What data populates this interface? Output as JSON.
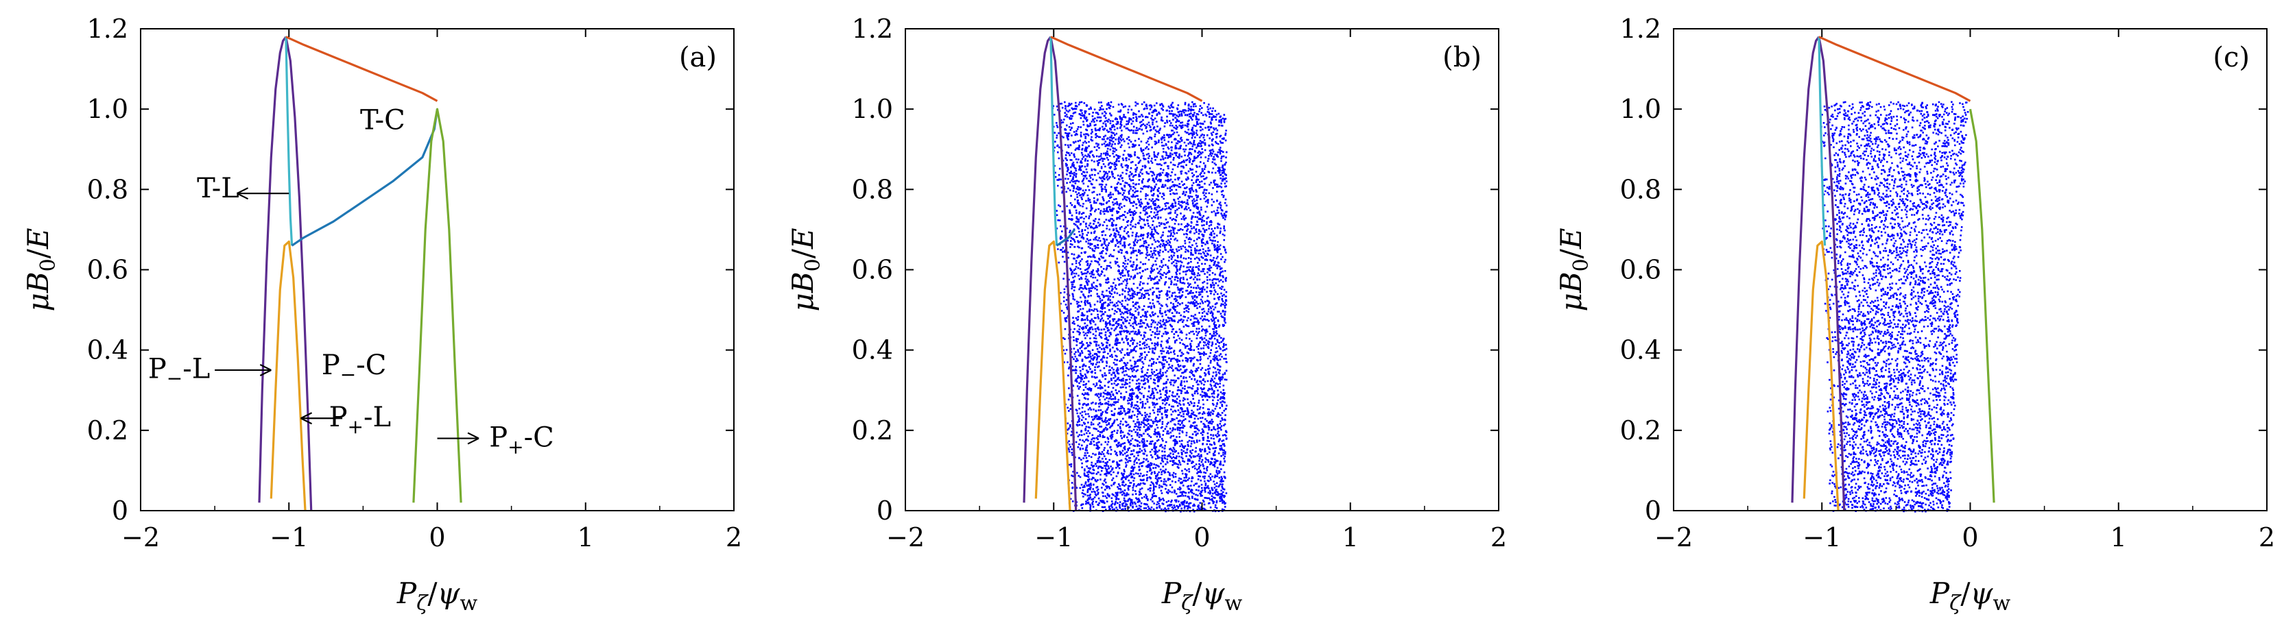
{
  "figure": {
    "panels": [
      "(a)",
      "(b)",
      "(c)"
    ],
    "xlabel": "P_ζ/ψ_w",
    "ylabel": "μB_0/E"
  },
  "colors": {
    "purple": "#5b2c8f",
    "orange": "#e6a020",
    "red_orange": "#d9541e",
    "teal_blue": "#1f77b4",
    "cyan": "#3fb6c8",
    "green": "#77ac30",
    "scatter_blue": "#0000ff"
  },
  "chart_data": [
    {
      "type": "line",
      "panel_label": "(a)",
      "xlim": [
        -2,
        2
      ],
      "ylim": [
        0,
        1.2
      ],
      "xticks": [
        -2,
        -1,
        0,
        1,
        2
      ],
      "yticks": [
        0,
        0.2,
        0.4,
        0.6,
        0.8,
        1.0,
        1.2
      ],
      "ytick_labels": [
        "0",
        "0.2",
        "0.4",
        "0.6",
        "0.8",
        "1.0",
        "1.2"
      ],
      "xtick_labels": [
        "−2",
        "−1",
        "0",
        "1",
        "2"
      ],
      "grid": false,
      "series": [
        {
          "key": "purple_outer",
          "color": "purple",
          "x": [
            -1.2,
            -1.18,
            -1.15,
            -1.12,
            -1.09,
            -1.06,
            -1.04,
            -1.02
          ],
          "y": [
            0.02,
            0.3,
            0.62,
            0.88,
            1.05,
            1.14,
            1.17,
            1.18
          ]
        },
        {
          "key": "purple_inner",
          "color": "purple",
          "x": [
            -1.02,
            -0.99,
            -0.96,
            -0.93,
            -0.9,
            -0.87,
            -0.85
          ],
          "y": [
            1.18,
            1.12,
            0.98,
            0.78,
            0.52,
            0.22,
            0.0
          ]
        },
        {
          "key": "orange",
          "color": "orange",
          "x": [
            -1.12,
            -1.09,
            -1.06,
            -1.03,
            -1.0,
            -0.97,
            -0.94,
            -0.91,
            -0.89
          ],
          "y": [
            0.03,
            0.3,
            0.55,
            0.66,
            0.67,
            0.58,
            0.38,
            0.14,
            0.0
          ]
        },
        {
          "key": "cyan",
          "color": "cyan",
          "x": [
            -1.02,
            -1.01,
            -1.0,
            -0.99,
            -0.98
          ],
          "y": [
            1.18,
            1.0,
            0.85,
            0.73,
            0.66
          ]
        },
        {
          "key": "teal_blue",
          "color": "teal_blue",
          "x": [
            -0.98,
            -0.9,
            -0.7,
            -0.5,
            -0.3,
            -0.1,
            -0.02,
            0.0
          ],
          "y": [
            0.66,
            0.68,
            0.72,
            0.77,
            0.82,
            0.88,
            0.95,
            1.0
          ]
        },
        {
          "key": "red_orange",
          "color": "red_orange",
          "x": [
            -1.02,
            -0.9,
            -0.7,
            -0.5,
            -0.3,
            -0.1,
            0.0
          ],
          "y": [
            1.18,
            1.16,
            1.13,
            1.1,
            1.07,
            1.04,
            1.02
          ]
        },
        {
          "key": "green",
          "color": "green",
          "x": [
            -0.16,
            -0.12,
            -0.08,
            -0.04,
            0.0,
            0.04,
            0.08,
            0.12,
            0.16
          ],
          "y": [
            0.02,
            0.35,
            0.7,
            0.92,
            1.0,
            0.92,
            0.7,
            0.35,
            0.02
          ]
        }
      ],
      "annotations": [
        {
          "text": "T-C",
          "x": -0.52,
          "y": 0.95
        },
        {
          "text": "T-L",
          "x": -1.62,
          "y": 0.78
        },
        {
          "text": "P−-L",
          "x": -1.95,
          "y": 0.33
        },
        {
          "text": "P−-C",
          "x": -0.78,
          "y": 0.34
        },
        {
          "text": "P+-L",
          "x": -0.73,
          "y": 0.21
        },
        {
          "text": "P+-C",
          "x": 0.35,
          "y": 0.16
        }
      ]
    },
    {
      "type": "scatter",
      "panel_label": "(b)",
      "xlim": [
        -2,
        2
      ],
      "ylim": [
        0,
        1.2
      ],
      "xticks": [
        -2,
        -1,
        0,
        1,
        2
      ],
      "yticks": [
        0,
        0.2,
        0.4,
        0.6,
        0.8,
        1.0,
        1.2
      ],
      "ytick_labels": [
        "0",
        "0.2",
        "0.4",
        "0.6",
        "0.8",
        "1.0",
        "1.2"
      ],
      "xtick_labels": [
        "−2",
        "−1",
        "0",
        "1",
        "2"
      ],
      "grid": false,
      "scatter_region": {
        "x_left_top": -1.02,
        "x_left_bottom": -0.9,
        "x_right": 0.16
      },
      "series": [
        {
          "key": "purple_outer",
          "color": "purple",
          "x": [
            -1.2,
            -1.18,
            -1.15,
            -1.12,
            -1.09,
            -1.06,
            -1.04,
            -1.02
          ],
          "y": [
            0.02,
            0.3,
            0.62,
            0.88,
            1.05,
            1.14,
            1.17,
            1.18
          ]
        },
        {
          "key": "purple_inner",
          "color": "purple",
          "x": [
            -1.02,
            -0.99,
            -0.96,
            -0.93,
            -0.9,
            -0.87,
            -0.85
          ],
          "y": [
            1.18,
            1.12,
            0.98,
            0.78,
            0.52,
            0.22,
            0.0
          ]
        },
        {
          "key": "orange",
          "color": "orange",
          "x": [
            -1.12,
            -1.09,
            -1.06,
            -1.03,
            -1.0,
            -0.97,
            -0.94,
            -0.91,
            -0.89
          ],
          "y": [
            0.03,
            0.3,
            0.55,
            0.66,
            0.67,
            0.58,
            0.38,
            0.14,
            0.0
          ]
        },
        {
          "key": "cyan",
          "color": "cyan",
          "x": [
            -1.02,
            -1.01,
            -1.0,
            -0.99,
            -0.98
          ],
          "y": [
            1.18,
            1.0,
            0.85,
            0.73,
            0.66
          ]
        },
        {
          "key": "teal_blue",
          "color": "teal_blue",
          "x": [
            -0.98,
            -0.94,
            -0.9,
            -0.86
          ],
          "y": [
            0.66,
            0.67,
            0.68,
            0.7
          ]
        },
        {
          "key": "red_orange",
          "color": "red_orange",
          "x": [
            -1.02,
            -0.9,
            -0.7,
            -0.5,
            -0.3,
            -0.1,
            0.0
          ],
          "y": [
            1.18,
            1.16,
            1.13,
            1.1,
            1.07,
            1.04,
            1.02
          ]
        }
      ]
    },
    {
      "type": "scatter",
      "panel_label": "(c)",
      "xlim": [
        -2,
        2
      ],
      "ylim": [
        0,
        1.2
      ],
      "xticks": [
        -2,
        -1,
        0,
        1,
        2
      ],
      "yticks": [
        0,
        0.2,
        0.4,
        0.6,
        0.8,
        1.0,
        1.2
      ],
      "ytick_labels": [
        "0",
        "0.2",
        "0.4",
        "0.6",
        "0.8",
        "1.0",
        "1.2"
      ],
      "xtick_labels": [
        "−2",
        "−1",
        "0",
        "1",
        "2"
      ],
      "grid": false,
      "scatter_region": {
        "x_left_top": -1.02,
        "x_left_bottom": -0.95,
        "x_right": -0.14,
        "x_right_top": -0.02
      },
      "series": [
        {
          "key": "purple_outer",
          "color": "purple",
          "x": [
            -1.2,
            -1.18,
            -1.15,
            -1.12,
            -1.09,
            -1.06,
            -1.04,
            -1.02
          ],
          "y": [
            0.02,
            0.3,
            0.62,
            0.88,
            1.05,
            1.14,
            1.17,
            1.18
          ]
        },
        {
          "key": "purple_inner",
          "color": "purple",
          "x": [
            -1.02,
            -0.99,
            -0.96,
            -0.93,
            -0.9,
            -0.87,
            -0.85
          ],
          "y": [
            1.18,
            1.12,
            0.98,
            0.78,
            0.52,
            0.22,
            0.0
          ]
        },
        {
          "key": "orange",
          "color": "orange",
          "x": [
            -1.12,
            -1.09,
            -1.06,
            -1.03,
            -1.0,
            -0.97,
            -0.94,
            -0.91,
            -0.89
          ],
          "y": [
            0.03,
            0.3,
            0.55,
            0.66,
            0.67,
            0.58,
            0.38,
            0.14,
            0.0
          ]
        },
        {
          "key": "cyan",
          "color": "cyan",
          "x": [
            -1.02,
            -1.01,
            -1.0,
            -0.99,
            -0.98
          ],
          "y": [
            1.18,
            1.0,
            0.85,
            0.73,
            0.66
          ]
        },
        {
          "key": "red_orange",
          "color": "red_orange",
          "x": [
            -1.02,
            -0.9,
            -0.7,
            -0.5,
            -0.3,
            -0.1,
            0.0
          ],
          "y": [
            1.18,
            1.16,
            1.13,
            1.1,
            1.07,
            1.04,
            1.02
          ]
        },
        {
          "key": "green",
          "color": "green",
          "x": [
            0.0,
            0.04,
            0.08,
            0.12,
            0.16
          ],
          "y": [
            1.0,
            0.92,
            0.7,
            0.35,
            0.02
          ]
        }
      ]
    }
  ]
}
